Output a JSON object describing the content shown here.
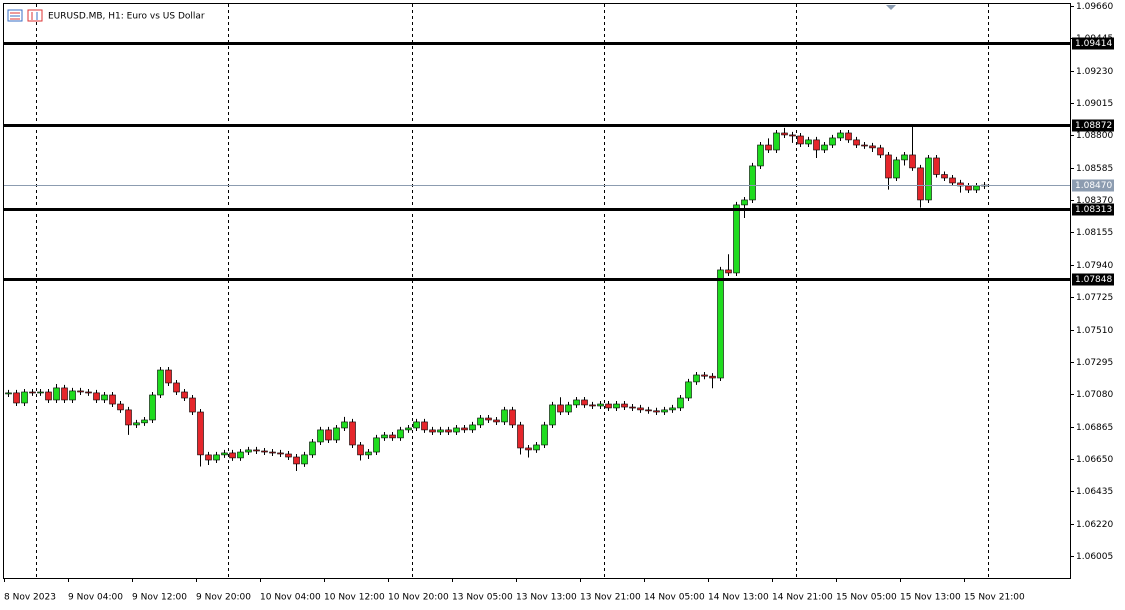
{
  "chart_data": {
    "type": "candlestick",
    "title": "EURUSD.MB, H1:  Euro vs US Dollar",
    "categories": [
      "8 Nov 2023",
      null,
      null,
      null,
      null,
      null,
      null,
      null,
      "9 Nov 04:00",
      null,
      null,
      null,
      null,
      null,
      null,
      null,
      "9 Nov 12:00",
      null,
      null,
      null,
      null,
      null,
      null,
      null,
      "9 Nov 20:00",
      null,
      null,
      null,
      null,
      null,
      null,
      null,
      "10 Nov 04:00",
      null,
      null,
      null,
      null,
      null,
      null,
      null,
      "10 Nov 12:00",
      null,
      null,
      null,
      null,
      null,
      null,
      null,
      "10 Nov 20:00",
      null,
      null,
      null,
      null,
      null,
      null,
      null,
      "13 Nov 05:00",
      null,
      null,
      null,
      null,
      null,
      null,
      null,
      "13 Nov 13:00",
      null,
      null,
      null,
      null,
      null,
      null,
      null,
      "13 Nov 21:00",
      null,
      null,
      null,
      null,
      null,
      null,
      null,
      "14 Nov 05:00",
      null,
      null,
      null,
      null,
      null,
      null,
      null,
      "14 Nov 13:00",
      null,
      null,
      null,
      null,
      null,
      null,
      null,
      "14 Nov 21:00",
      null,
      null,
      null,
      null,
      null,
      null,
      null,
      "15 Nov 05:00",
      null,
      null,
      null,
      null,
      null,
      null,
      null,
      "15 Nov 13:00",
      null,
      null,
      null,
      null,
      null,
      null,
      null,
      "15 Nov 21:00",
      null,
      null
    ],
    "open": [
      1.07082,
      1.07089,
      1.07022,
      1.07095,
      1.07089,
      1.07095,
      1.07042,
      1.07122,
      1.07042,
      1.07102,
      1.07095,
      1.07089,
      1.07042,
      1.07075,
      1.07015,
      1.06976,
      1.06876,
      1.0689,
      1.06909,
      1.07075,
      1.07241,
      1.07155,
      1.07095,
      1.07055,
      1.06962,
      1.06677,
      1.06643,
      1.06677,
      1.0669,
      1.06657,
      1.06696,
      1.0671,
      1.06703,
      1.06696,
      1.0669,
      1.06683,
      1.06663,
      1.06617,
      1.06677,
      1.06763,
      1.06843,
      1.06776,
      1.06856,
      1.06896,
      1.06743,
      1.06677,
      1.06696,
      1.0679,
      1.06809,
      1.0679,
      1.06843,
      1.06856,
      1.06896,
      1.06843,
      1.06829,
      1.06843,
      1.06829,
      1.06856,
      1.06843,
      1.06876,
      1.06922,
      1.06909,
      1.06896,
      1.06976,
      1.06876,
      1.06723,
      1.0671,
      1.06743,
      1.06876,
      1.07009,
      1.06962,
      1.07009,
      1.07042,
      1.07009,
      1.07002,
      1.07015,
      1.06989,
      1.07015,
      1.06995,
      1.06989,
      1.06976,
      1.0697,
      1.06962,
      1.06976,
      1.06989,
      1.07055,
      1.07162,
      1.07208,
      1.072,
      1.07188,
      1.07906,
      1.07886,
      1.08338,
      1.08371,
      1.08597,
      1.08736,
      1.08703,
      1.08816,
      1.08803,
      1.08796,
      1.08743,
      1.0877,
      1.08703,
      1.08736,
      1.08783,
      1.08816,
      1.0877,
      1.08736,
      1.0873,
      1.08717,
      1.0867,
      1.08517,
      1.08637,
      1.0867,
      1.08584,
      1.08371,
      1.0865,
      1.0854,
      1.08517,
      1.08484,
      1.08464,
      1.08437,
      1.08464
    ],
    "high": [
      1.07109,
      1.07109,
      1.07115,
      1.07115,
      1.07115,
      1.07115,
      1.07148,
      1.07142,
      1.07122,
      1.07122,
      1.07115,
      1.07109,
      1.07095,
      1.07095,
      1.07035,
      1.06996,
      1.0691,
      1.06929,
      1.07095,
      1.07261,
      1.07261,
      1.07175,
      1.07115,
      1.07075,
      1.06982,
      1.06697,
      1.06697,
      1.0671,
      1.0671,
      1.06716,
      1.0673,
      1.0673,
      1.06723,
      1.06716,
      1.0671,
      1.06703,
      1.06683,
      1.06697,
      1.06783,
      1.06863,
      1.06863,
      1.06876,
      1.0693,
      1.06916,
      1.06763,
      1.06716,
      1.0681,
      1.06829,
      1.06829,
      1.06863,
      1.06876,
      1.06916,
      1.06916,
      1.06863,
      1.06863,
      1.06863,
      1.06876,
      1.06876,
      1.06896,
      1.06942,
      1.06942,
      1.06929,
      1.06996,
      1.06996,
      1.06896,
      1.06743,
      1.06763,
      1.06896,
      1.07029,
      1.0706,
      1.07029,
      1.07062,
      1.07062,
      1.07029,
      1.07035,
      1.07035,
      1.07035,
      1.07035,
      1.07015,
      1.07009,
      1.06996,
      1.0699,
      1.06996,
      1.07009,
      1.07075,
      1.07182,
      1.07228,
      1.07228,
      1.0722,
      1.07926,
      1.0801,
      1.08358,
      1.08391,
      1.08617,
      1.08756,
      1.0878,
      1.08836,
      1.0885,
      1.08823,
      1.08816,
      1.0879,
      1.0879,
      1.08756,
      1.08803,
      1.08836,
      1.08836,
      1.0879,
      1.08756,
      1.0875,
      1.08737,
      1.0869,
      1.08657,
      1.0869,
      1.08856,
      1.08604,
      1.0867,
      1.0867,
      1.0856,
      1.08537,
      1.08504,
      1.08484,
      1.08484,
      1.0849
    ],
    "low": [
      1.07062,
      1.07002,
      1.07002,
      1.07069,
      1.07069,
      1.07022,
      1.07022,
      1.07022,
      1.07022,
      1.07075,
      1.07069,
      1.07022,
      1.07022,
      1.06995,
      1.06956,
      1.0681,
      1.06856,
      1.0687,
      1.06889,
      1.07055,
      1.07135,
      1.07075,
      1.07035,
      1.06942,
      1.066,
      1.0661,
      1.06623,
      1.06657,
      1.06637,
      1.06637,
      1.06676,
      1.06683,
      1.06676,
      1.0667,
      1.06663,
      1.06643,
      1.0657,
      1.06597,
      1.06657,
      1.06743,
      1.06756,
      1.06756,
      1.06836,
      1.06723,
      1.0664,
      1.0665,
      1.06676,
      1.0677,
      1.0677,
      1.0677,
      1.06823,
      1.06836,
      1.06823,
      1.06809,
      1.06809,
      1.06809,
      1.06809,
      1.06823,
      1.06823,
      1.06856,
      1.06889,
      1.06876,
      1.06876,
      1.06856,
      1.0668,
      1.0666,
      1.0669,
      1.06723,
      1.06856,
      1.06942,
      1.06942,
      1.06989,
      1.06989,
      1.06982,
      1.06982,
      1.06969,
      1.06969,
      1.06975,
      1.06969,
      1.06956,
      1.0695,
      1.06942,
      1.06942,
      1.06956,
      1.06969,
      1.07035,
      1.07142,
      1.0718,
      1.0712,
      1.07168,
      1.07866,
      1.07866,
      1.08251,
      1.08351,
      1.08577,
      1.08683,
      1.08683,
      1.08783,
      1.0875,
      1.08723,
      1.08723,
      1.0865,
      1.08683,
      1.08716,
      1.08763,
      1.0875,
      1.08716,
      1.0871,
      1.0869,
      1.0865,
      1.0844,
      1.08497,
      1.086,
      1.08564,
      1.0832,
      1.08351,
      1.0852,
      1.08497,
      1.08464,
      1.0842,
      1.08417,
      1.08417,
      1.08444
    ],
    "close": [
      1.07089,
      1.07022,
      1.07095,
      1.07089,
      1.07095,
      1.07042,
      1.07122,
      1.07042,
      1.07102,
      1.07095,
      1.07089,
      1.07042,
      1.07075,
      1.07015,
      1.06976,
      1.06876,
      1.0689,
      1.06909,
      1.07075,
      1.07241,
      1.07155,
      1.07095,
      1.07055,
      1.06962,
      1.06677,
      1.06643,
      1.06677,
      1.0669,
      1.06657,
      1.06696,
      1.0671,
      1.06703,
      1.06696,
      1.0669,
      1.06683,
      1.06663,
      1.06617,
      1.06677,
      1.06763,
      1.06843,
      1.06776,
      1.06856,
      1.06896,
      1.06743,
      1.06677,
      1.06696,
      1.0679,
      1.06809,
      1.0679,
      1.06843,
      1.06856,
      1.06896,
      1.06843,
      1.06829,
      1.06843,
      1.06829,
      1.06856,
      1.06843,
      1.06876,
      1.06922,
      1.06909,
      1.06896,
      1.06976,
      1.06876,
      1.06723,
      1.0671,
      1.06743,
      1.06876,
      1.07009,
      1.06962,
      1.07009,
      1.07042,
      1.07009,
      1.07002,
      1.07015,
      1.06989,
      1.07015,
      1.06995,
      1.06989,
      1.06976,
      1.0697,
      1.06962,
      1.06976,
      1.06989,
      1.07055,
      1.07162,
      1.07208,
      1.072,
      1.07188,
      1.07906,
      1.07886,
      1.08338,
      1.08371,
      1.08597,
      1.08736,
      1.08703,
      1.08816,
      1.08803,
      1.08796,
      1.08743,
      1.0877,
      1.08703,
      1.08736,
      1.08783,
      1.08816,
      1.0877,
      1.08736,
      1.0873,
      1.08717,
      1.0867,
      1.08517,
      1.08637,
      1.0867,
      1.08584,
      1.08371,
      1.0865,
      1.0854,
      1.08517,
      1.08484,
      1.08464,
      1.08437,
      1.08464,
      1.0847
    ],
    "up_color": "#1fdc1f",
    "down_color": "#e5262b",
    "ylim": [
      1.05859,
      1.09673
    ],
    "yticks": [
      {
        "value": 1.0966,
        "label": "1.09660"
      },
      1.09445,
      {
        "value": 1.0923,
        "label": "1.09230"
      },
      1.09015,
      {
        "value": 1.088,
        "label": "1.08800"
      },
      1.08585,
      {
        "value": 1.0837,
        "label": "1.08370"
      },
      1.08155,
      {
        "value": 1.0794,
        "label": "1.07940"
      },
      1.07725,
      {
        "value": 1.0751,
        "label": "1.07510"
      },
      1.07295,
      {
        "value": 1.0708,
        "label": "1.07080"
      },
      1.06865,
      {
        "value": 1.0665,
        "label": "1.06650"
      },
      1.06435,
      {
        "value": 1.0622,
        "label": "1.06220"
      },
      1.06005
    ],
    "levels": [
      1.09414,
      1.08872,
      1.08313,
      1.07848
    ],
    "current_price": {
      "value": 1.0847,
      "label": "1.08470"
    }
  }
}
